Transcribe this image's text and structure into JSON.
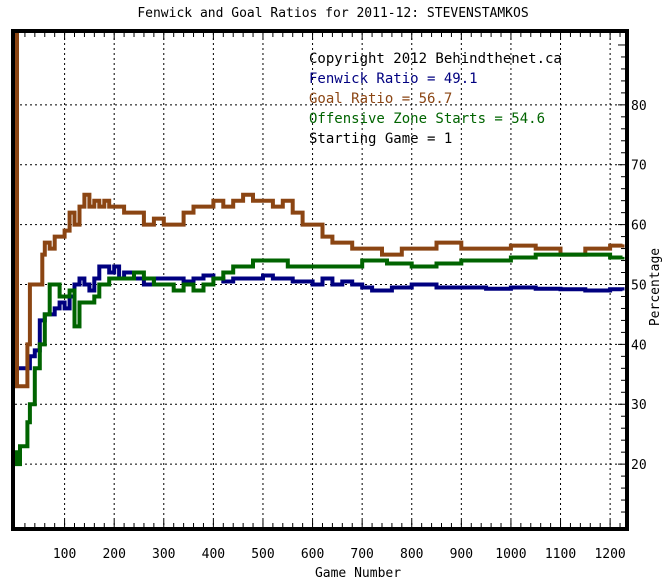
{
  "chart_data": {
    "type": "line",
    "title": "Fenwick and Goal Ratios for 2011-12: STEVENSTAMKOS",
    "xlabel": "Game Number",
    "ylabel": "Percentage",
    "xlim": [
      0,
      1230
    ],
    "ylim": [
      9.5,
      92
    ],
    "x_ticks": [
      100,
      200,
      300,
      400,
      500,
      600,
      700,
      800,
      900,
      1000,
      1100,
      1200
    ],
    "x_tick_labels": [
      "100",
      "200",
      "300",
      "400",
      "500",
      "600",
      "700",
      "800",
      "900",
      "1000",
      "1100",
      "1200"
    ],
    "y_ticks": [
      20,
      30,
      40,
      50,
      60,
      70,
      80
    ],
    "y_tick_labels": [
      "20",
      "30",
      "40",
      "50",
      "60",
      "70",
      "80"
    ],
    "grid": true,
    "annotations": [
      {
        "text": "Copyright 2012 Behindthenet.ca",
        "color": "#000000"
      },
      {
        "text": "Fenwick Ratio = 49.1",
        "color": "#000080"
      },
      {
        "text": "Goal Ratio = 56.7",
        "color": "#8b4513"
      },
      {
        "text": "Offensive Zone Starts = 54.6",
        "color": "#006400"
      },
      {
        "text": "Starting Game = 1",
        "color": "#000000"
      }
    ],
    "series": [
      {
        "color": "#000080",
        "x": [
          0,
          10,
          20,
          30,
          40,
          50,
          60,
          70,
          80,
          90,
          100,
          110,
          120,
          130,
          140,
          150,
          160,
          170,
          180,
          190,
          200,
          210,
          220,
          230,
          240,
          260,
          280,
          300,
          320,
          340,
          360,
          380,
          400,
          420,
          440,
          460,
          480,
          500,
          520,
          540,
          560,
          580,
          600,
          620,
          640,
          660,
          680,
          700,
          720,
          740,
          760,
          780,
          800,
          850,
          900,
          950,
          1000,
          1050,
          1100,
          1150,
          1200,
          1225
        ],
        "y": [
          36,
          36,
          36,
          38,
          39,
          44,
          45,
          45,
          46,
          47,
          46,
          48,
          50,
          51,
          50,
          49,
          51,
          53,
          53,
          52,
          53,
          51,
          52,
          52,
          51,
          50,
          51,
          51,
          51,
          50.5,
          51,
          51.5,
          51,
          50.5,
          51,
          51,
          51,
          51.5,
          51,
          51,
          50.5,
          50.5,
          50,
          51,
          50,
          50.5,
          50,
          49.5,
          49,
          49,
          49.5,
          49.5,
          50,
          49.5,
          49.5,
          49.3,
          49.5,
          49.3,
          49.2,
          49,
          49.2,
          49
        ]
      },
      {
        "color": "#8b4513",
        "x": [
          0,
          2,
          4,
          10,
          20,
          25,
          30,
          40,
          50,
          55,
          60,
          70,
          80,
          90,
          100,
          110,
          120,
          130,
          140,
          150,
          160,
          170,
          180,
          190,
          200,
          220,
          240,
          260,
          280,
          300,
          320,
          340,
          360,
          380,
          400,
          420,
          440,
          460,
          480,
          500,
          520,
          540,
          560,
          580,
          600,
          620,
          640,
          660,
          680,
          700,
          720,
          740,
          760,
          780,
          800,
          850,
          900,
          950,
          1000,
          1050,
          1100,
          1150,
          1200,
          1225
        ],
        "y": [
          92,
          92,
          33,
          33,
          33,
          40,
          50,
          50,
          50,
          55,
          57,
          56,
          58,
          58,
          59,
          62,
          60,
          63,
          65,
          63,
          64,
          63,
          64,
          63,
          63,
          62,
          62,
          60,
          61,
          60,
          60,
          62,
          63,
          63,
          64,
          63,
          64,
          65,
          64,
          64,
          63,
          64,
          62,
          60,
          60,
          58,
          57,
          57,
          56,
          56,
          56,
          55,
          55,
          56,
          56,
          57,
          56,
          56,
          56.5,
          56,
          55,
          56,
          56.5,
          56.7
        ]
      },
      {
        "color": "#006400",
        "x": [
          0,
          2,
          10,
          20,
          25,
          30,
          40,
          50,
          60,
          70,
          80,
          90,
          100,
          110,
          120,
          130,
          140,
          150,
          160,
          170,
          180,
          190,
          200,
          220,
          240,
          260,
          280,
          300,
          320,
          340,
          360,
          380,
          400,
          420,
          440,
          460,
          480,
          500,
          550,
          600,
          650,
          700,
          750,
          800,
          850,
          900,
          950,
          1000,
          1050,
          1100,
          1150,
          1200,
          1225
        ],
        "y": [
          22,
          20,
          23,
          23,
          27,
          30,
          36,
          40,
          45,
          50,
          50,
          48,
          48,
          49,
          43,
          47,
          47,
          47,
          48,
          50,
          50,
          51,
          51,
          51,
          52,
          51,
          50,
          50,
          49,
          50,
          49,
          50,
          51,
          52,
          53,
          53,
          54,
          54,
          53,
          53,
          53,
          54,
          53.5,
          53,
          53.5,
          54,
          54,
          54.5,
          55,
          55,
          55,
          54.5,
          54.6
        ]
      }
    ]
  }
}
